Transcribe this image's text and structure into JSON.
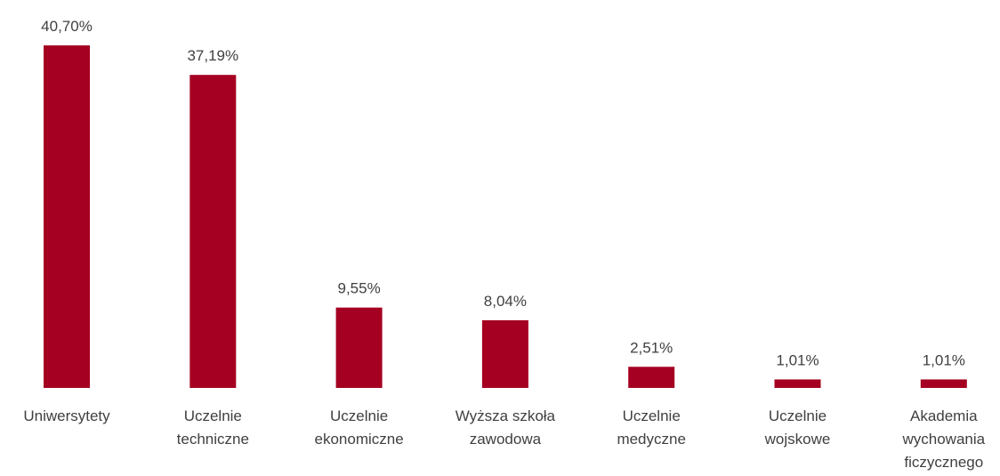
{
  "chart_data": {
    "type": "bar",
    "categories": [
      "Uniwersytety",
      "Uczelnie techniczne",
      "Uczelnie ekonomiczne",
      "Wyższa szkoła zawodowa",
      "Uczelnie medyczne",
      "Uczelnie wojskowe",
      "Akademia wychowania ficzycznego"
    ],
    "values": [
      40.7,
      37.19,
      9.55,
      8.04,
      2.51,
      1.01,
      1.01
    ],
    "value_labels": [
      "40,70%",
      "37,19%",
      "9,55%",
      "8,04%",
      "2,51%",
      "1,01%",
      "1,01%"
    ],
    "color": "#a50021"
  }
}
